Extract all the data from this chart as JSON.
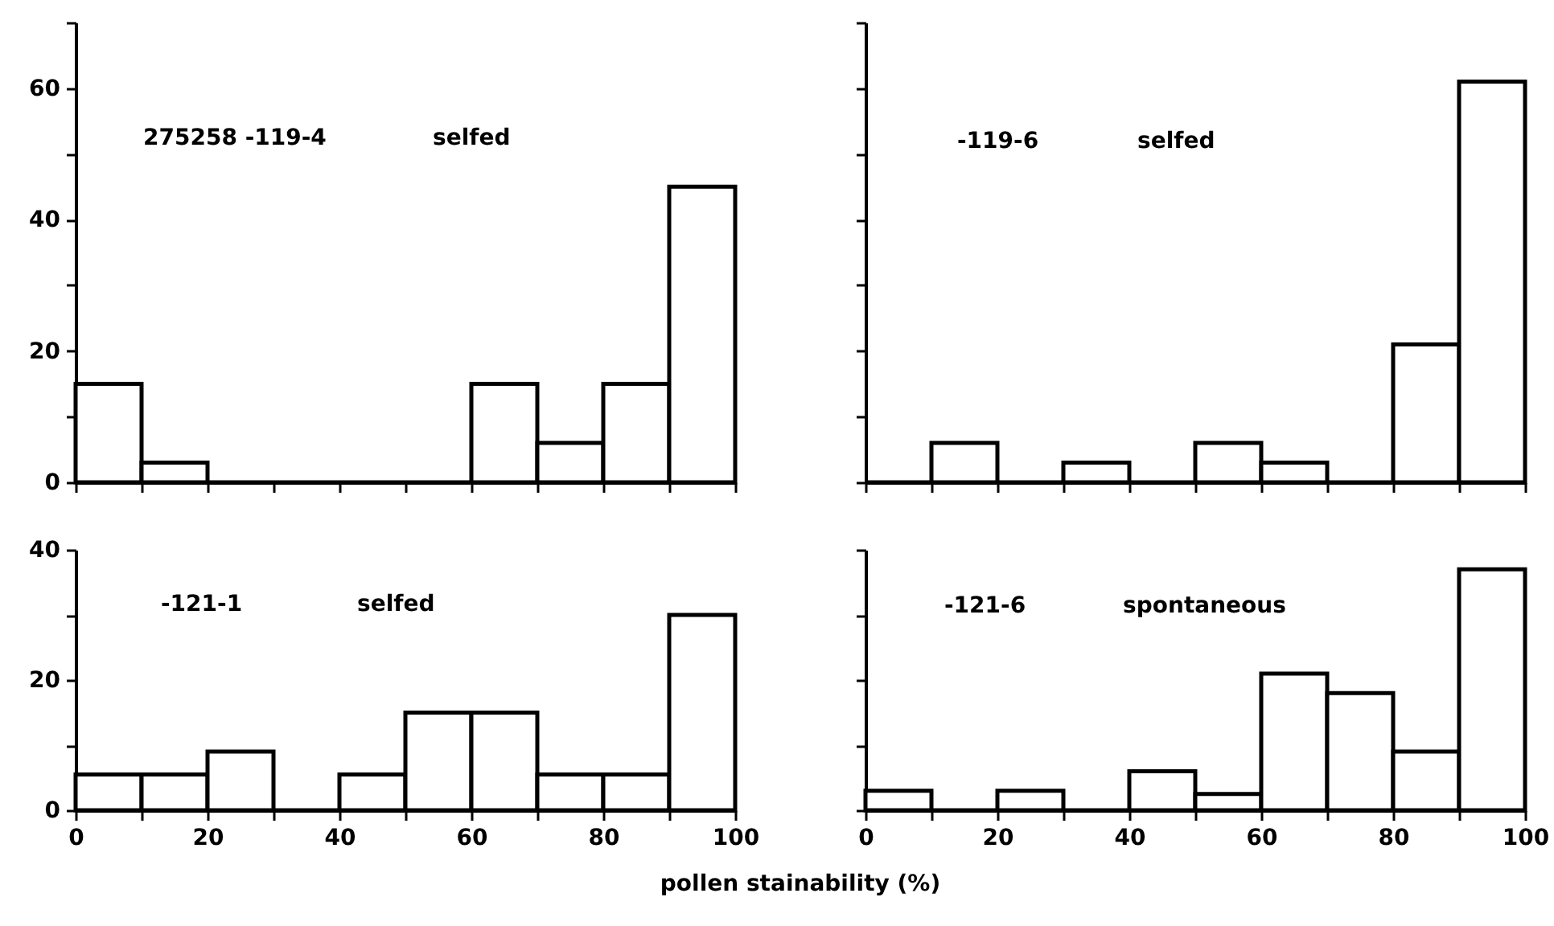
{
  "chart_data": [
    {
      "type": "histogram",
      "annotations": [
        "275258 -119-4",
        "selfed"
      ],
      "bins": [
        0,
        10,
        20,
        30,
        40,
        50,
        60,
        70,
        80,
        90,
        100
      ],
      "values": [
        15,
        3,
        0,
        0,
        0,
        0,
        15,
        6,
        15,
        45
      ],
      "color": "#000000",
      "xlim": [
        0,
        100
      ],
      "xticks": [
        0,
        {
          "value": 10,
          "label": null
        },
        20,
        {
          "value": 30,
          "label": null
        },
        40,
        {
          "value": 50,
          "label": null
        },
        60,
        {
          "value": 70,
          "label": null
        },
        80,
        {
          "value": 90,
          "label": null
        },
        100
      ],
      "ylim": [
        0,
        70
      ],
      "yticks": [
        0,
        {
          "value": 10,
          "label": null
        },
        20,
        {
          "value": 30,
          "label": null
        },
        40,
        {
          "value": 50,
          "label": null
        },
        60,
        {
          "value": 70,
          "label": null
        }
      ],
      "tick_labels": "y"
    },
    {
      "type": "histogram",
      "annotations": [
        "-119-6",
        "selfed"
      ],
      "bins": [
        0,
        10,
        20,
        30,
        40,
        50,
        60,
        70,
        80,
        90,
        100
      ],
      "values": [
        0,
        6,
        0,
        3,
        0,
        6,
        3,
        0,
        21,
        61
      ],
      "color": "#000000",
      "xlim": [
        0,
        100
      ],
      "xticks": [
        0,
        {
          "value": 10,
          "label": null
        },
        20,
        {
          "value": 30,
          "label": null
        },
        40,
        {
          "value": 50,
          "label": null
        },
        60,
        {
          "value": 70,
          "label": null
        },
        80,
        {
          "value": 90,
          "label": null
        },
        100
      ],
      "ylim": [
        0,
        70
      ],
      "yticks": [
        0,
        {
          "value": 10,
          "label": null
        },
        20,
        {
          "value": 30,
          "label": null
        },
        40,
        {
          "value": 50,
          "label": null
        },
        60,
        {
          "value": 70,
          "label": null
        }
      ],
      "tick_labels": false
    },
    {
      "type": "histogram",
      "xlabel": "pollen stainability (%)",
      "annotations": [
        "-121-1",
        "selfed"
      ],
      "bins": [
        0,
        10,
        20,
        30,
        40,
        50,
        60,
        70,
        80,
        90,
        100
      ],
      "values": [
        5.5,
        5.5,
        9,
        0,
        5.5,
        15,
        15,
        5.5,
        5.5,
        30
      ],
      "color": "#000000",
      "xlim": [
        0,
        100
      ],
      "xticks": [
        0,
        {
          "value": 10,
          "label": null
        },
        20,
        {
          "value": 30,
          "label": null
        },
        40,
        {
          "value": 50,
          "label": null
        },
        60,
        {
          "value": 70,
          "label": null
        },
        80,
        {
          "value": 90,
          "label": null
        },
        100
      ],
      "ylim": [
        0,
        40
      ],
      "yticks": [
        0,
        {
          "value": 10,
          "label": null
        },
        20,
        {
          "value": 30,
          "label": null
        },
        40
      ]
    },
    {
      "type": "histogram",
      "annotations": [
        "-121-6",
        "spontaneous"
      ],
      "bins": [
        0,
        10,
        20,
        30,
        40,
        50,
        60,
        70,
        80,
        90,
        100
      ],
      "values": [
        3,
        0,
        3,
        0,
        6,
        2.5,
        21,
        18,
        9,
        37
      ],
      "color": "#000000",
      "xlim": [
        0,
        100
      ],
      "xticks": [
        0,
        {
          "value": 10,
          "label": null
        },
        20,
        {
          "value": 30,
          "label": null
        },
        40,
        {
          "value": 50,
          "label": null
        },
        60,
        {
          "value": 70,
          "label": null
        },
        80,
        {
          "value": 90,
          "label": null
        },
        100
      ],
      "ylim": [
        0,
        40
      ],
      "yticks": [
        0,
        {
          "value": 10,
          "label": null
        },
        20,
        {
          "value": 30,
          "label": null
        },
        40
      ],
      "tick_labels": "x"
    }
  ]
}
